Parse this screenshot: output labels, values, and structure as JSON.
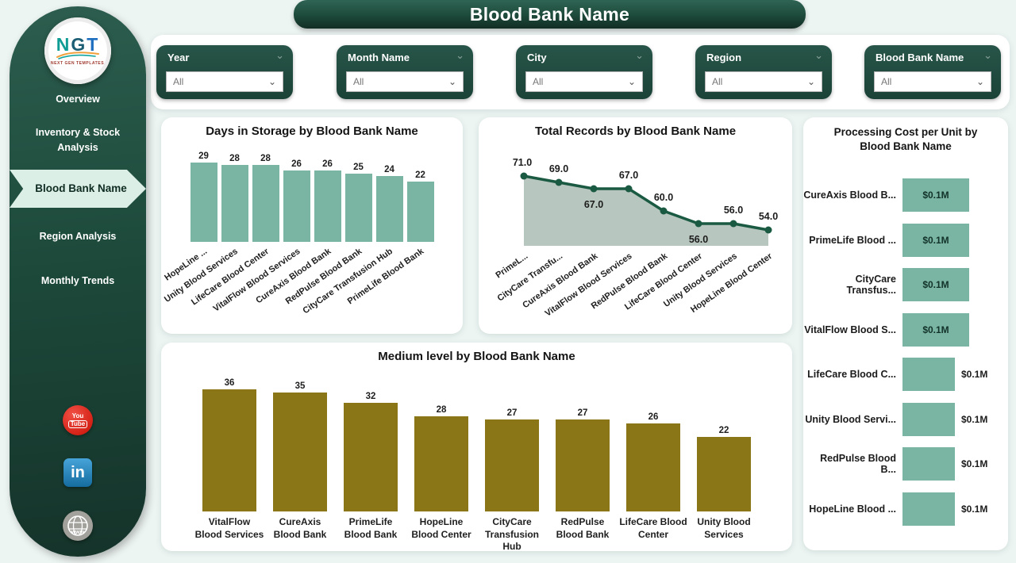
{
  "page": {
    "title": "Blood Bank Name"
  },
  "logo": {
    "letters": [
      "N",
      "G",
      "T"
    ],
    "subtext": "NEXT GEN TEMPLATES"
  },
  "sidebar": {
    "items": [
      {
        "label": "Overview",
        "selected": false
      },
      {
        "label": "Inventory & Stock Analysis",
        "selected": false
      },
      {
        "label": "Blood Bank Name",
        "selected": true
      },
      {
        "label": "Region Analysis",
        "selected": false
      },
      {
        "label": "Monthly Trends",
        "selected": false
      }
    ],
    "social": [
      {
        "name": "youtube-icon",
        "lines": [
          "You",
          "Tube"
        ]
      },
      {
        "name": "linkedin-icon",
        "label": "in"
      },
      {
        "name": "www-globe-icon",
        "label": "www"
      }
    ]
  },
  "filters": [
    {
      "label": "Year",
      "value": "All"
    },
    {
      "label": "Month Name",
      "value": "All"
    },
    {
      "label": "City",
      "value": "All"
    },
    {
      "label": "Region",
      "value": "All"
    },
    {
      "label": "Blood Bank Name",
      "value": "All"
    }
  ],
  "colors": {
    "teal_bar": "#7ab5a3",
    "olive_bar": "#8a7517",
    "area_fill": "#b7c6be",
    "line": "#1b5a42",
    "dark_green": "#1d4a3b"
  },
  "chart_data": [
    {
      "id": "days_in_storage",
      "type": "bar",
      "title": "Days in Storage by Blood Bank Name",
      "categories": [
        "HopeLine ...",
        "Unity Blood Services",
        "LifeCare Blood Center",
        "VitalFlow Blood Services",
        "CureAxis Blood Bank",
        "RedPulse Blood Bank",
        "CityCare Transfusion Hub",
        "PrimeLife Blood Bank"
      ],
      "values": [
        29,
        28,
        28,
        26,
        26,
        25,
        24,
        22
      ],
      "ylim": [
        0,
        29
      ],
      "value_labels": [
        "29",
        "28",
        "28",
        "26",
        "26",
        "25",
        "24",
        "22"
      ]
    },
    {
      "id": "total_records",
      "type": "area",
      "title": "Total Records by Blood Bank Name",
      "categories": [
        "PrimeL...",
        "CityCare Transfu...",
        "CureAxis Blood Bank",
        "VitalFlow Blood Services",
        "RedPulse Blood Bank",
        "LifeCare Blood Center",
        "Unity Blood Services",
        "HopeLine Blood Center"
      ],
      "values": [
        71,
        69,
        67,
        67,
        60,
        56,
        56,
        54
      ],
      "value_labels": [
        "71.0",
        "69.0",
        "67.0",
        "67.0",
        "60.0",
        "56.0",
        "56.0",
        "54.0"
      ],
      "label_position": [
        "above",
        "above",
        "below",
        "above",
        "above",
        "below",
        "above",
        "above"
      ],
      "ylim": [
        49,
        74
      ]
    },
    {
      "id": "medium_level",
      "type": "bar",
      "title": "Medium level by Blood Bank Name",
      "categories": [
        "VitalFlow Blood Services",
        "CureAxis Blood Bank",
        "PrimeLife Blood Bank",
        "HopeLine Blood Center",
        "CityCare Transfusion Hub",
        "RedPulse Blood Bank",
        "LifeCare Blood Center",
        "Unity Blood Services"
      ],
      "values": [
        36,
        35,
        32,
        28,
        27,
        27,
        26,
        22
      ],
      "ylim": [
        0,
        36
      ],
      "value_labels": [
        "36",
        "35",
        "32",
        "28",
        "27",
        "27",
        "26",
        "22"
      ]
    },
    {
      "id": "processing_cost",
      "type": "bar-horizontal",
      "title": "Processing Cost per Unit by Blood Bank Name",
      "categories": [
        "CureAxis Blood B...",
        "PrimeLife Blood ...",
        "CityCare Transfus...",
        "VitalFlow Blood S...",
        "LifeCare Blood C...",
        "Unity Blood Servi...",
        "RedPulse Blood B...",
        "HopeLine Blood ..."
      ],
      "values": [
        0.1,
        0.1,
        0.1,
        0.1,
        0.1,
        0.1,
        0.1,
        0.1
      ],
      "value_labels": [
        "$0.1M",
        "$0.1M",
        "$0.1M",
        "$0.1M",
        "$0.1M",
        "$0.1M",
        "$0.1M",
        "$0.1M"
      ],
      "label_inside": [
        true,
        true,
        true,
        true,
        false,
        false,
        false,
        false
      ]
    }
  ]
}
